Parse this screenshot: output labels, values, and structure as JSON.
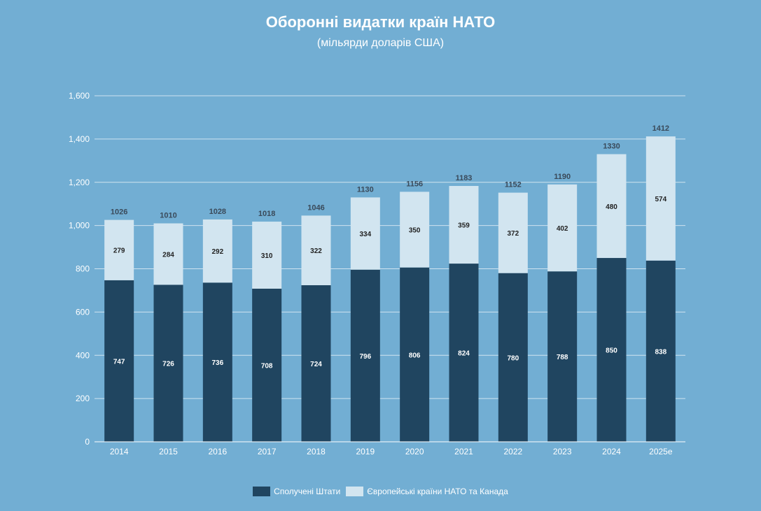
{
  "chart_data": {
    "type": "bar",
    "stacked": true,
    "title": "Оборонні видатки країн НАТО",
    "subtitle": "(мільярди доларів США)",
    "xlabel": "",
    "ylabel": "",
    "ylim": [
      0,
      1600
    ],
    "yticks": [
      0,
      200,
      400,
      600,
      800,
      1000,
      1200,
      1400,
      1600
    ],
    "ytick_labels": [
      "0",
      "200",
      "400",
      "600",
      "800",
      "1,000",
      "1,200",
      "1,400",
      "1,600"
    ],
    "grid": true,
    "legend_position": "bottom",
    "categories": [
      "2014",
      "2015",
      "2016",
      "2017",
      "2018",
      "2019",
      "2020",
      "2021",
      "2022",
      "2023",
      "2024",
      "2025e"
    ],
    "series": [
      {
        "name": "Сполучені Штати",
        "color": "#204560",
        "values": [
          747,
          726,
          736,
          708,
          724,
          796,
          806,
          824,
          780,
          788,
          850,
          838
        ]
      },
      {
        "name": "Європейські країни НАТО та Канада",
        "color": "#d2e5f0",
        "values": [
          279,
          284,
          292,
          310,
          322,
          334,
          350,
          359,
          372,
          402,
          480,
          574
        ]
      }
    ],
    "totals": [
      1026,
      1010,
      1028,
      1018,
      1046,
      1130,
      1156,
      1183,
      1152,
      1190,
      1330,
      1412
    ]
  }
}
